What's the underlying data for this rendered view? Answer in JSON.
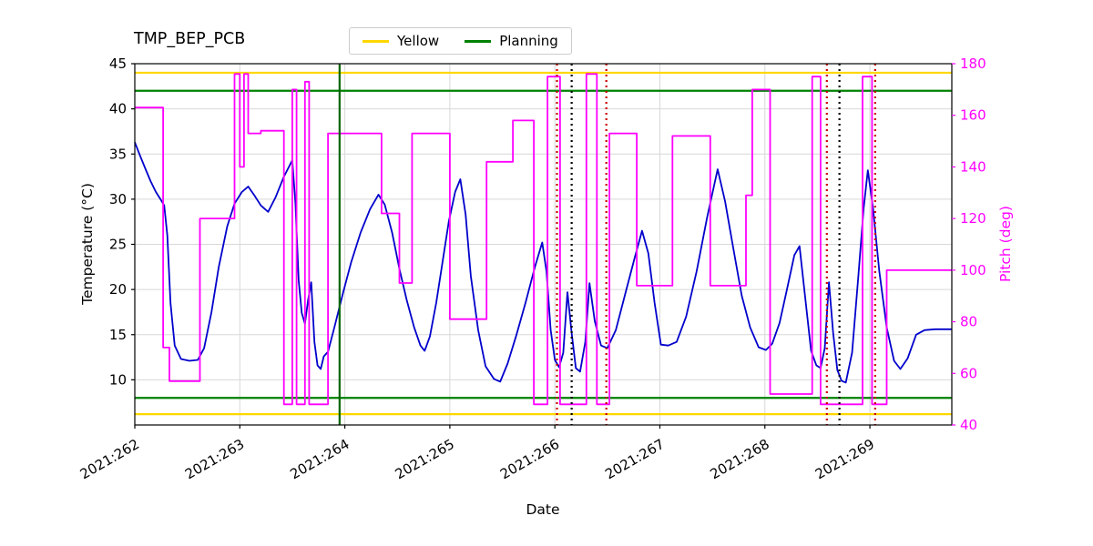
{
  "chart_data": {
    "type": "line",
    "title": "TMP_BEP_PCB",
    "xlabel": "Date",
    "ylabel_left": "Temperature (°C)",
    "ylabel_right": "Pitch (deg)",
    "x_range": [
      262.0,
      269.78
    ],
    "y_left_range": [
      5,
      45
    ],
    "y_right_range": [
      40,
      180
    ],
    "grid": true,
    "legend_position": "top-center",
    "legend": [
      {
        "label": "Yellow",
        "color": "#ffd700"
      },
      {
        "label": "Planning",
        "color": "#008000"
      }
    ],
    "x_ticks": [
      {
        "value": 262,
        "label": "2021:262"
      },
      {
        "value": 263,
        "label": "2021:263"
      },
      {
        "value": 264,
        "label": "2021:264"
      },
      {
        "value": 265,
        "label": "2021:265"
      },
      {
        "value": 266,
        "label": "2021:266"
      },
      {
        "value": 267,
        "label": "2021:267"
      },
      {
        "value": 268,
        "label": "2021:268"
      },
      {
        "value": 269,
        "label": "2021:269"
      }
    ],
    "y_left_ticks": [
      10,
      15,
      20,
      25,
      30,
      35,
      40,
      45
    ],
    "y_right_ticks": [
      40,
      60,
      80,
      100,
      120,
      140,
      160,
      180
    ],
    "colors": {
      "temperature": "#0000cc",
      "pitch": "#ff00ff",
      "grid": "#d8d8d8",
      "frame": "#000000",
      "yellow_limit": "#ffd700",
      "planning_limit": "#008000",
      "planning_marker": "#006400",
      "event_red": "#cc0000",
      "event_black": "#000000"
    },
    "limit_lines": [
      {
        "name": "yellow-limit-high",
        "color": "#ffd700",
        "y": 44
      },
      {
        "name": "yellow-limit-low",
        "color": "#ffd700",
        "y": 6.2
      },
      {
        "name": "planning-limit-high",
        "color": "#008000",
        "y": 42
      },
      {
        "name": "planning-limit-low",
        "color": "#008000",
        "y": 8
      }
    ],
    "event_lines": [
      {
        "name": "planning-marker",
        "color": "#006400",
        "x": 263.95,
        "style": "solid"
      },
      {
        "name": "event-red-1",
        "color": "#cc0000",
        "x": 266.02,
        "style": "dotted"
      },
      {
        "name": "event-black-1",
        "color": "#000000",
        "x": 266.16,
        "style": "dotted"
      },
      {
        "name": "event-red-2",
        "color": "#cc0000",
        "x": 266.49,
        "style": "dotted"
      },
      {
        "name": "event-red-3",
        "color": "#cc0000",
        "x": 268.59,
        "style": "dotted"
      },
      {
        "name": "event-black-2",
        "color": "#000000",
        "x": 268.71,
        "style": "dotted"
      },
      {
        "name": "event-red-4",
        "color": "#cc0000",
        "x": 269.05,
        "style": "dotted"
      }
    ],
    "series": [
      {
        "name": "temperature",
        "axis": "left",
        "color": "#0000cc",
        "points": [
          [
            262.0,
            36.3
          ],
          [
            262.05,
            34.8
          ],
          [
            262.1,
            33.4
          ],
          [
            262.15,
            32.0
          ],
          [
            262.2,
            30.8
          ],
          [
            262.25,
            29.9
          ],
          [
            262.28,
            29.3
          ],
          [
            262.31,
            26.0
          ],
          [
            262.34,
            18.5
          ],
          [
            262.38,
            13.8
          ],
          [
            262.44,
            12.3
          ],
          [
            262.52,
            12.1
          ],
          [
            262.6,
            12.2
          ],
          [
            262.66,
            13.5
          ],
          [
            262.73,
            17.5
          ],
          [
            262.8,
            22.5
          ],
          [
            262.88,
            27.0
          ],
          [
            262.95,
            29.5
          ],
          [
            263.02,
            30.8
          ],
          [
            263.08,
            31.4
          ],
          [
            263.14,
            30.4
          ],
          [
            263.2,
            29.3
          ],
          [
            263.27,
            28.6
          ],
          [
            263.34,
            30.2
          ],
          [
            263.42,
            32.5
          ],
          [
            263.5,
            34.3
          ],
          [
            263.53,
            29.5
          ],
          [
            263.56,
            21.0
          ],
          [
            263.59,
            17.4
          ],
          [
            263.62,
            16.2
          ],
          [
            263.65,
            18.8
          ],
          [
            263.68,
            20.8
          ],
          [
            263.71,
            14.2
          ],
          [
            263.74,
            11.6
          ],
          [
            263.77,
            11.2
          ],
          [
            263.8,
            12.6
          ],
          [
            263.84,
            13.1
          ],
          [
            263.9,
            15.8
          ],
          [
            263.98,
            19.5
          ],
          [
            264.06,
            23.0
          ],
          [
            264.15,
            26.3
          ],
          [
            264.24,
            28.9
          ],
          [
            264.32,
            30.5
          ],
          [
            264.38,
            29.4
          ],
          [
            264.45,
            26.3
          ],
          [
            264.52,
            22.3
          ],
          [
            264.59,
            18.8
          ],
          [
            264.66,
            15.8
          ],
          [
            264.72,
            13.8
          ],
          [
            264.76,
            13.2
          ],
          [
            264.81,
            14.8
          ],
          [
            264.87,
            18.5
          ],
          [
            264.93,
            23.0
          ],
          [
            264.99,
            27.5
          ],
          [
            265.05,
            30.8
          ],
          [
            265.1,
            32.2
          ],
          [
            265.15,
            28.3
          ],
          [
            265.2,
            21.5
          ],
          [
            265.27,
            15.5
          ],
          [
            265.34,
            11.5
          ],
          [
            265.42,
            10.1
          ],
          [
            265.48,
            9.8
          ],
          [
            265.55,
            11.8
          ],
          [
            265.63,
            14.8
          ],
          [
            265.72,
            18.5
          ],
          [
            265.81,
            22.5
          ],
          [
            265.88,
            25.2
          ],
          [
            265.92,
            22.0
          ],
          [
            265.96,
            15.5
          ],
          [
            266.0,
            12.2
          ],
          [
            266.04,
            11.4
          ],
          [
            266.08,
            13.0
          ],
          [
            266.12,
            19.7
          ],
          [
            266.16,
            15.2
          ],
          [
            266.2,
            11.3
          ],
          [
            266.24,
            10.9
          ],
          [
            266.29,
            14.2
          ],
          [
            266.33,
            20.7
          ],
          [
            266.38,
            16.5
          ],
          [
            266.44,
            13.8
          ],
          [
            266.5,
            13.5
          ],
          [
            266.58,
            15.5
          ],
          [
            266.67,
            19.5
          ],
          [
            266.76,
            23.5
          ],
          [
            266.83,
            26.5
          ],
          [
            266.89,
            24.0
          ],
          [
            266.95,
            18.5
          ],
          [
            267.01,
            13.9
          ],
          [
            267.08,
            13.8
          ],
          [
            267.16,
            14.2
          ],
          [
            267.25,
            17.0
          ],
          [
            267.35,
            22.0
          ],
          [
            267.45,
            28.0
          ],
          [
            267.55,
            33.3
          ],
          [
            267.62,
            29.8
          ],
          [
            267.7,
            24.5
          ],
          [
            267.78,
            19.3
          ],
          [
            267.86,
            15.8
          ],
          [
            267.94,
            13.6
          ],
          [
            268.01,
            13.3
          ],
          [
            268.07,
            14.0
          ],
          [
            268.14,
            16.3
          ],
          [
            268.21,
            20.0
          ],
          [
            268.28,
            23.8
          ],
          [
            268.33,
            24.8
          ],
          [
            268.38,
            19.5
          ],
          [
            268.44,
            13.2
          ],
          [
            268.49,
            11.6
          ],
          [
            268.53,
            11.3
          ],
          [
            268.57,
            13.5
          ],
          [
            268.61,
            20.8
          ],
          [
            268.65,
            15.2
          ],
          [
            268.69,
            11.1
          ],
          [
            268.73,
            9.9
          ],
          [
            268.77,
            9.7
          ],
          [
            268.83,
            13.0
          ],
          [
            268.89,
            21.5
          ],
          [
            268.94,
            29.0
          ],
          [
            268.98,
            33.2
          ],
          [
            269.03,
            29.0
          ],
          [
            269.09,
            22.0
          ],
          [
            269.16,
            15.8
          ],
          [
            269.23,
            12.1
          ],
          [
            269.29,
            11.2
          ],
          [
            269.36,
            12.4
          ],
          [
            269.44,
            15.0
          ],
          [
            269.52,
            15.5
          ],
          [
            269.62,
            15.6
          ],
          [
            269.78,
            15.6
          ]
        ]
      },
      {
        "name": "pitch",
        "axis": "right",
        "color": "#ff00ff",
        "points": [
          [
            262.0,
            163
          ],
          [
            262.27,
            163
          ],
          [
            262.27,
            70
          ],
          [
            262.33,
            70
          ],
          [
            262.33,
            57
          ],
          [
            262.62,
            57
          ],
          [
            262.62,
            120
          ],
          [
            262.95,
            120
          ],
          [
            262.95,
            176
          ],
          [
            263.0,
            176
          ],
          [
            263.0,
            140
          ],
          [
            263.04,
            140
          ],
          [
            263.04,
            176
          ],
          [
            263.08,
            176
          ],
          [
            263.08,
            153
          ],
          [
            263.2,
            153
          ],
          [
            263.2,
            154
          ],
          [
            263.42,
            154
          ],
          [
            263.42,
            48
          ],
          [
            263.5,
            48
          ],
          [
            263.5,
            170
          ],
          [
            263.54,
            170
          ],
          [
            263.54,
            48
          ],
          [
            263.62,
            48
          ],
          [
            263.62,
            173
          ],
          [
            263.66,
            173
          ],
          [
            263.66,
            48
          ],
          [
            263.84,
            48
          ],
          [
            263.84,
            153
          ],
          [
            264.35,
            153
          ],
          [
            264.35,
            122
          ],
          [
            264.52,
            122
          ],
          [
            264.52,
            95
          ],
          [
            264.64,
            95
          ],
          [
            264.64,
            153
          ],
          [
            265.0,
            153
          ],
          [
            265.0,
            81
          ],
          [
            265.35,
            81
          ],
          [
            265.35,
            142
          ],
          [
            265.6,
            142
          ],
          [
            265.6,
            158
          ],
          [
            265.8,
            158
          ],
          [
            265.8,
            48
          ],
          [
            265.93,
            48
          ],
          [
            265.93,
            175
          ],
          [
            266.05,
            175
          ],
          [
            266.05,
            48
          ],
          [
            266.3,
            48
          ],
          [
            266.3,
            176
          ],
          [
            266.4,
            176
          ],
          [
            266.4,
            48
          ],
          [
            266.52,
            48
          ],
          [
            266.52,
            153
          ],
          [
            266.78,
            153
          ],
          [
            266.78,
            94
          ],
          [
            267.12,
            94
          ],
          [
            267.12,
            152
          ],
          [
            267.48,
            152
          ],
          [
            267.48,
            94
          ],
          [
            267.82,
            94
          ],
          [
            267.82,
            129
          ],
          [
            267.88,
            129
          ],
          [
            267.88,
            170
          ],
          [
            268.05,
            170
          ],
          [
            268.05,
            52
          ],
          [
            268.45,
            52
          ],
          [
            268.45,
            175
          ],
          [
            268.53,
            175
          ],
          [
            268.53,
            48
          ],
          [
            268.93,
            48
          ],
          [
            268.93,
            175
          ],
          [
            269.02,
            175
          ],
          [
            269.02,
            48
          ],
          [
            269.16,
            48
          ],
          [
            269.16,
            100
          ],
          [
            269.5,
            100
          ],
          [
            269.78,
            100
          ]
        ]
      }
    ]
  }
}
